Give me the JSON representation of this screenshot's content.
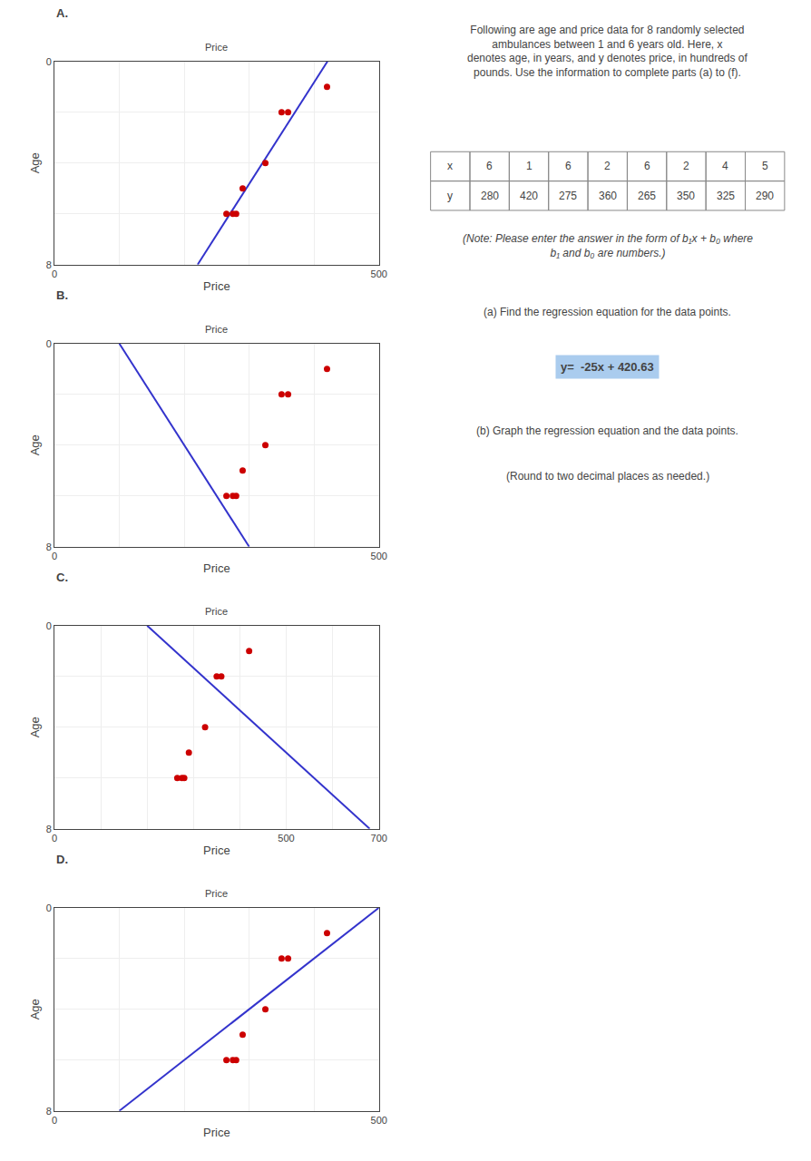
{
  "title": "Following are age and price data for 8 randomly selected ambulances between 1 and 6 years old. Here, x\ndenotes age, in years, and y denotes price, in hundreds of pounds. Use the information to complete parts (a) to (f).",
  "annotations": [
    "(Note: Please enter the answer in the form of b₁x + b₀ where b₁ and b₀ are numbers.)",
    "(a) Find the regression equation for the data points.",
    "y=  -25x + 420.63",
    "(b) Graph the regression equation and the data points.",
    "(Round to two decimal places as needed.)"
  ],
  "chart_data": [
    {
      "type": "scatter",
      "title": "A.",
      "annotations": [
        "Price"
      ],
      "xlabel": "Price",
      "ylabel": "Age",
      "xlim": [
        0,
        500
      ],
      "xticks": [
        0,
        {
          "value": 100,
          "label": null
        },
        {
          "value": 200,
          "label": null
        },
        {
          "value": 300,
          "label": null
        },
        {
          "value": 400,
          "label": null
        },
        500
      ],
      "ylim": [
        8,
        0
      ],
      "yticks": [
        0,
        {
          "value": 2,
          "label": null
        },
        {
          "value": 4,
          "label": null
        },
        {
          "value": 6,
          "label": null
        },
        8
      ],
      "grid": true,
      "series": [
        {
          "type": "line",
          "color": "#3333cc",
          "x": [
            420.63,
            220.63
          ],
          "y": [
            0,
            8
          ]
        },
        {
          "type": "scatter",
          "color": "#cc0000",
          "x": [
            280,
            420,
            275,
            360,
            265,
            350,
            325,
            290
          ],
          "y": [
            6,
            1,
            6,
            2,
            6,
            2,
            4,
            5
          ]
        }
      ]
    },
    {
      "type": "scatter",
      "title": "B.",
      "annotations": [
        "Price"
      ],
      "xlabel": "Price",
      "ylabel": "Age",
      "xlim": [
        0,
        500
      ],
      "xticks": [
        0,
        {
          "value": 100,
          "label": null
        },
        {
          "value": 200,
          "label": null
        },
        {
          "value": 300,
          "label": null
        },
        {
          "value": 400,
          "label": null
        },
        500
      ],
      "ylim": [
        8,
        0
      ],
      "yticks": [
        0,
        {
          "value": 2,
          "label": null
        },
        {
          "value": 4,
          "label": null
        },
        {
          "value": 6,
          "label": null
        },
        8
      ],
      "grid": true,
      "series": [
        {
          "type": "line",
          "color": "#3333cc",
          "x": [
            100,
            300
          ],
          "y": [
            0,
            8
          ]
        },
        {
          "type": "scatter",
          "color": "#cc0000",
          "x": [
            280,
            420,
            275,
            360,
            265,
            350,
            325,
            290
          ],
          "y": [
            6,
            1,
            6,
            2,
            6,
            2,
            4,
            5
          ]
        }
      ]
    },
    {
      "type": "scatter",
      "title": "C.",
      "annotations": [
        "Price"
      ],
      "xlabel": "Price",
      "ylabel": "Age",
      "xlim": [
        0,
        700
      ],
      "xticks": [
        0,
        {
          "value": 100,
          "label": null
        },
        {
          "value": 200,
          "label": null
        },
        {
          "value": 300,
          "label": null
        },
        {
          "value": 400,
          "label": null
        },
        500,
        {
          "value": 600,
          "label": null
        },
        700
      ],
      "ylim": [
        8,
        0
      ],
      "yticks": [
        0,
        {
          "value": 2,
          "label": null
        },
        {
          "value": 4,
          "label": null
        },
        {
          "value": 6,
          "label": null
        },
        8
      ],
      "grid": true,
      "series": [
        {
          "type": "line",
          "color": "#3333cc",
          "x": [
            200,
            680
          ],
          "y": [
            0,
            8
          ]
        },
        {
          "type": "scatter",
          "color": "#cc0000",
          "x": [
            280,
            420,
            275,
            360,
            265,
            350,
            325,
            290
          ],
          "y": [
            6,
            1,
            6,
            2,
            6,
            2,
            4,
            5
          ]
        }
      ]
    },
    {
      "type": "scatter",
      "title": "D.",
      "annotations": [
        "Price"
      ],
      "xlabel": "Price",
      "ylabel": "Age",
      "xlim": [
        0,
        500
      ],
      "xticks": [
        0,
        {
          "value": 100,
          "label": null
        },
        {
          "value": 200,
          "label": null
        },
        {
          "value": 300,
          "label": null
        },
        {
          "value": 400,
          "label": null
        },
        500
      ],
      "ylim": [
        8,
        0
      ],
      "yticks": [
        0,
        {
          "value": 2,
          "label": null
        },
        {
          "value": 4,
          "label": null
        },
        {
          "value": 6,
          "label": null
        },
        8
      ],
      "grid": true,
      "series": [
        {
          "type": "line",
          "color": "#3333cc",
          "x": [
            500,
            100
          ],
          "y": [
            0,
            8
          ]
        },
        {
          "type": "scatter",
          "color": "#cc0000",
          "x": [
            280,
            420,
            275,
            360,
            265,
            350,
            325,
            290
          ],
          "y": [
            6,
            1,
            6,
            2,
            6,
            2,
            4,
            5
          ]
        }
      ]
    },
    {
      "type": "table",
      "series": [
        {
          "name": "x",
          "values": [
            6,
            1,
            6,
            2,
            6,
            2,
            4,
            5
          ]
        },
        {
          "name": "y",
          "values": [
            280,
            420,
            275,
            360,
            265,
            350,
            325,
            290
          ]
        }
      ]
    }
  ]
}
